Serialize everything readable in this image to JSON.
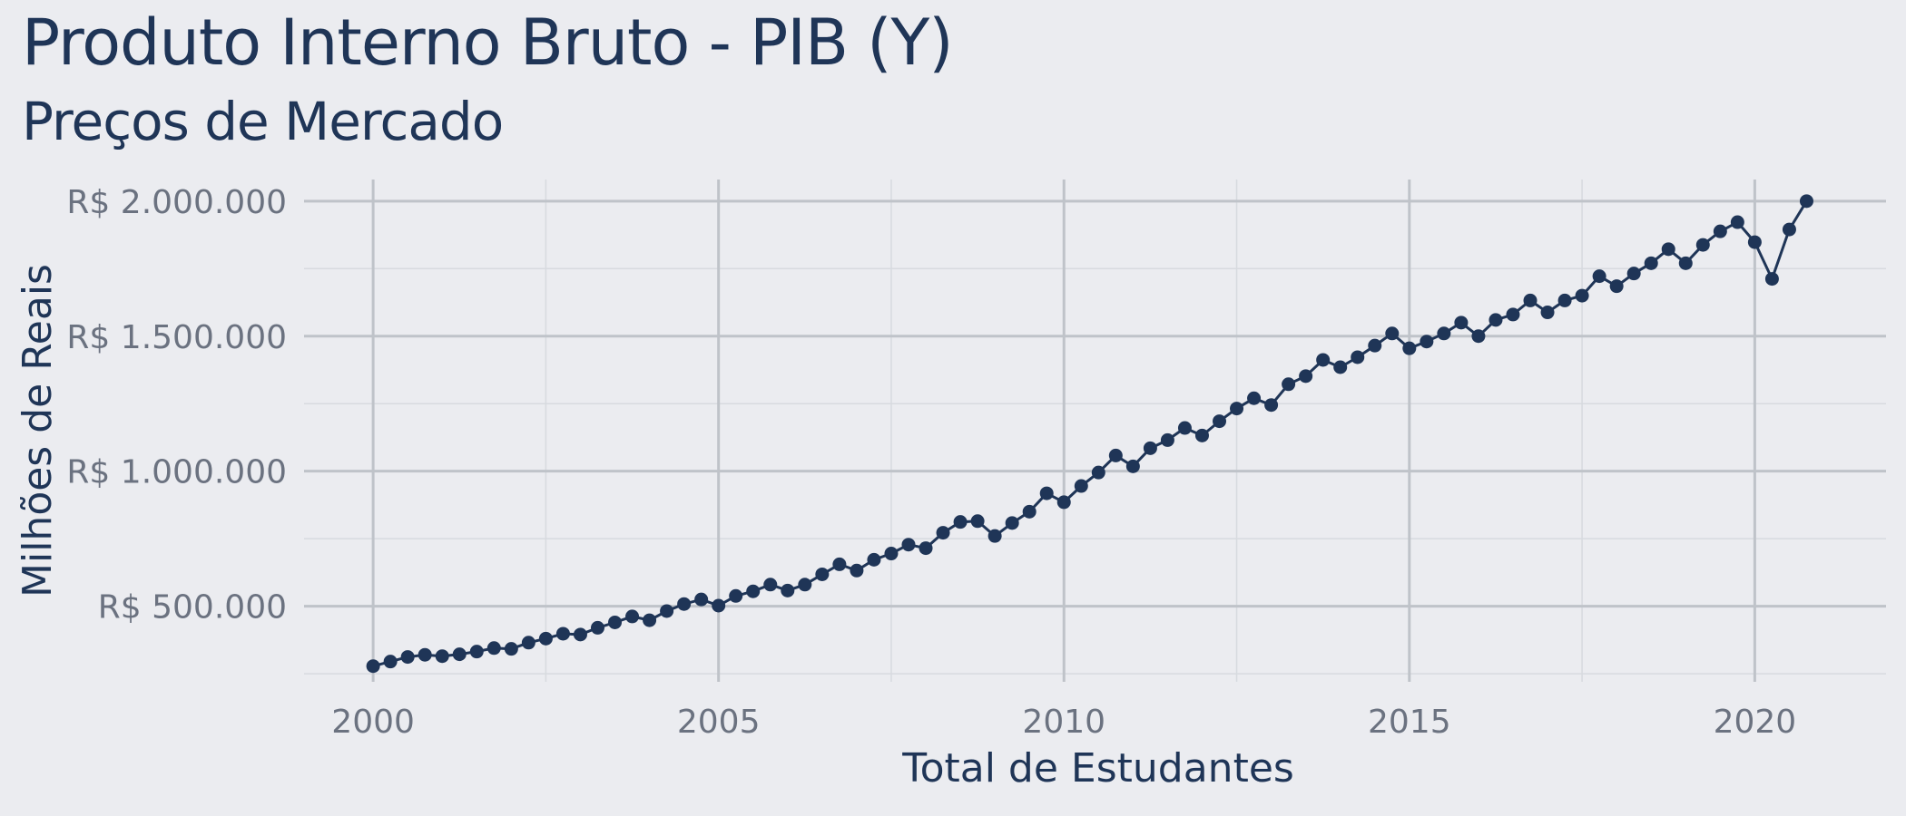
{
  "colors": {
    "background": "#EBECF0",
    "line": "#1F3557",
    "point": "#1F3557",
    "grid_major": "#BFC3C9",
    "grid_minor": "#D7DADF",
    "tick_text": "#6B7280",
    "title_text": "#1F3557"
  },
  "chart_data": {
    "type": "line",
    "title": "Produto Interno Bruto - PIB (Y)",
    "subtitle": "Preços de Mercado",
    "xlabel": "Total de Estudantes",
    "ylabel": "Milhões de Reais",
    "xlim": [
      1999.0,
      2021.9
    ],
    "ylim": [
      220000,
      2080000
    ],
    "x_ticks": [
      2000,
      2005,
      2010,
      2015,
      2020
    ],
    "x_tick_labels": [
      "2000",
      "2005",
      "2010",
      "2015",
      "2020"
    ],
    "y_ticks": [
      500000,
      1000000,
      1500000,
      2000000
    ],
    "y_tick_labels": [
      "R$ 500.000",
      "R$ 1.000.000",
      "R$ 1.500.000",
      "R$ 2.000.000"
    ],
    "grid": true,
    "legend": "none",
    "series": [
      {
        "points": true,
        "x": [
          2000.0,
          2000.25,
          2000.5,
          2000.75,
          2001.0,
          2001.25,
          2001.5,
          2001.75,
          2002.0,
          2002.25,
          2002.5,
          2002.75,
          2003.0,
          2003.25,
          2003.5,
          2003.75,
          2004.0,
          2004.25,
          2004.5,
          2004.75,
          2005.0,
          2005.25,
          2005.5,
          2005.75,
          2006.0,
          2006.25,
          2006.5,
          2006.75,
          2007.0,
          2007.25,
          2007.5,
          2007.75,
          2008.0,
          2008.25,
          2008.5,
          2008.75,
          2009.0,
          2009.25,
          2009.5,
          2009.75,
          2010.0,
          2010.25,
          2010.5,
          2010.75,
          2011.0,
          2011.25,
          2011.5,
          2011.75,
          2012.0,
          2012.25,
          2012.5,
          2012.75,
          2013.0,
          2013.25,
          2013.5,
          2013.75,
          2014.0,
          2014.25,
          2014.5,
          2014.75,
          2015.0,
          2015.25,
          2015.5,
          2015.75,
          2016.0,
          2016.25,
          2016.5,
          2016.75,
          2017.0,
          2017.25,
          2017.5,
          2017.75,
          2018.0,
          2018.25,
          2018.5,
          2018.75,
          2019.0,
          2019.25,
          2019.5,
          2019.75,
          2020.0,
          2020.25,
          2020.5,
          2020.75
        ],
        "values": [
          278000,
          295000,
          312000,
          320000,
          315000,
          322000,
          332000,
          345000,
          342000,
          365000,
          380000,
          398000,
          395000,
          420000,
          440000,
          462000,
          448000,
          482000,
          508000,
          525000,
          502000,
          538000,
          555000,
          580000,
          558000,
          580000,
          618000,
          655000,
          632000,
          672000,
          695000,
          728000,
          715000,
          772000,
          812000,
          815000,
          760000,
          808000,
          850000,
          918000,
          885000,
          945000,
          995000,
          1058000,
          1018000,
          1085000,
          1115000,
          1160000,
          1132000,
          1185000,
          1232000,
          1270000,
          1245000,
          1322000,
          1352000,
          1412000,
          1385000,
          1422000,
          1465000,
          1510000,
          1455000,
          1480000,
          1510000,
          1550000,
          1500000,
          1560000,
          1580000,
          1632000,
          1588000,
          1632000,
          1650000,
          1722000,
          1685000,
          1732000,
          1770000,
          1822000,
          1770000,
          1838000,
          1888000,
          1922000,
          1848000,
          1712000,
          1895000,
          2000000
        ]
      }
    ]
  }
}
